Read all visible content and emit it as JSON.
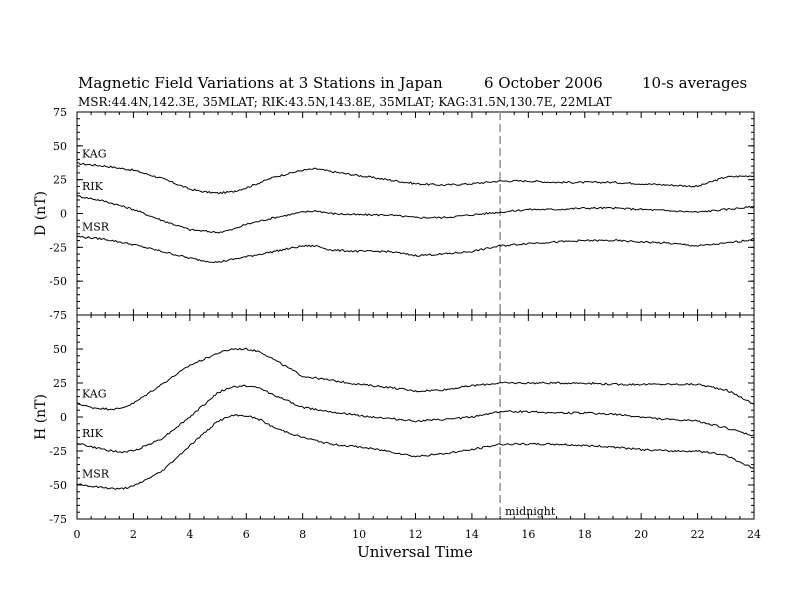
{
  "header": {
    "title": "Magnetic Field Variations at 3 Stations in Japan",
    "date": "6   October 2006",
    "averaging": "10-s averages",
    "stations": "MSR:44.4N,142.3E, 35MLAT;  RIK:43.5N,143.8E, 35MLAT;  KAG:31.5N,130.7E, 22MLAT"
  },
  "chart_data": [
    {
      "type": "line",
      "panel": "D",
      "ylabel": "D (nT)",
      "xlabel": "",
      "xlim": [
        0,
        24
      ],
      "ylim": [
        -75,
        75
      ],
      "yticks": [
        75,
        50,
        25,
        0,
        -25,
        -50,
        -75
      ],
      "xticks": [
        0,
        2,
        4,
        6,
        8,
        10,
        12,
        14,
        16,
        18,
        20,
        22,
        24
      ],
      "series": [
        {
          "name": "KAG",
          "x": [
            0,
            1,
            2,
            3,
            4,
            4.5,
            5,
            5.5,
            6,
            7,
            8,
            8.5,
            9,
            10,
            11,
            12,
            13,
            14,
            15,
            16,
            17,
            18,
            19,
            20,
            21,
            22,
            23,
            24
          ],
          "values": [
            37,
            35,
            32,
            26,
            18,
            16,
            15,
            16,
            19,
            27,
            32,
            33,
            31,
            28,
            25,
            22,
            21,
            22,
            24,
            24,
            23,
            23,
            23,
            22,
            21,
            20,
            27,
            28
          ]
        },
        {
          "name": "RIK",
          "x": [
            0,
            1,
            2,
            3,
            4,
            4.5,
            5,
            5.5,
            6,
            7,
            8,
            8.5,
            9,
            10,
            11,
            12,
            13,
            14,
            15,
            16,
            17,
            18,
            19,
            20,
            21,
            22,
            23,
            24
          ],
          "values": [
            13,
            9,
            3,
            -5,
            -12,
            -13,
            -14,
            -12,
            -8,
            -3,
            1,
            2,
            0,
            -1,
            -1,
            -3,
            -3,
            -1,
            1,
            3,
            3,
            4,
            4,
            3,
            2,
            1,
            3,
            5
          ]
        },
        {
          "name": "MSR",
          "x": [
            0,
            1,
            2,
            3,
            4,
            4.5,
            5,
            5.5,
            6,
            7,
            8,
            8.5,
            9,
            10,
            11,
            12,
            13,
            14,
            15,
            16,
            17,
            18,
            19,
            20,
            21,
            22,
            23,
            24
          ],
          "values": [
            -17,
            -19,
            -23,
            -28,
            -33,
            -35,
            -36,
            -34,
            -32,
            -28,
            -24,
            -24,
            -27,
            -28,
            -28,
            -31,
            -30,
            -28,
            -24,
            -22,
            -21,
            -20,
            -20,
            -21,
            -22,
            -24,
            -22,
            -19
          ]
        }
      ]
    },
    {
      "type": "line",
      "panel": "H",
      "ylabel": "H (nT)",
      "xlabel": "Universal Time",
      "xlim": [
        0,
        24
      ],
      "ylim": [
        -75,
        75
      ],
      "yticks": [
        50,
        25,
        0,
        -25,
        -50,
        -75
      ],
      "xticks": [
        0,
        2,
        4,
        6,
        8,
        10,
        12,
        14,
        16,
        18,
        20,
        22,
        24
      ],
      "series": [
        {
          "name": "KAG",
          "x": [
            0,
            0.5,
            1,
            1.5,
            2,
            3,
            4,
            5,
            5.5,
            6,
            6.5,
            7,
            8,
            9,
            10,
            11,
            12,
            13,
            14,
            15,
            16,
            17,
            18,
            19,
            20,
            21,
            22,
            23,
            23.5,
            24
          ],
          "values": [
            10,
            7,
            6,
            6,
            10,
            24,
            38,
            47,
            50,
            50,
            48,
            42,
            30,
            27,
            24,
            22,
            19,
            20,
            23,
            25,
            25,
            25,
            25,
            24,
            24,
            24,
            24,
            20,
            15,
            9
          ]
        },
        {
          "name": "RIK",
          "x": [
            0,
            0.5,
            1,
            1.5,
            2,
            3,
            4,
            5,
            5.5,
            6,
            6.5,
            7,
            8,
            9,
            10,
            11,
            12,
            13,
            14,
            15,
            16,
            17,
            18,
            19,
            20,
            21,
            22,
            23,
            23.5,
            24
          ],
          "values": [
            -19,
            -22,
            -24,
            -26,
            -25,
            -16,
            0,
            18,
            22,
            23,
            21,
            16,
            7,
            4,
            1,
            -1,
            -3,
            -2,
            0,
            4,
            4,
            3,
            3,
            2,
            0,
            -2,
            -3,
            -8,
            -11,
            -14
          ]
        },
        {
          "name": "MSR",
          "x": [
            0,
            0.5,
            1,
            1.5,
            2,
            3,
            4,
            5,
            5.5,
            6,
            6.5,
            7,
            8,
            9,
            10,
            11,
            12,
            13,
            14,
            15,
            16,
            17,
            18,
            19,
            20,
            21,
            22,
            23,
            23.5,
            24
          ],
          "values": [
            -49,
            -51,
            -52,
            -53,
            -51,
            -40,
            -21,
            -3,
            1,
            1,
            -2,
            -8,
            -15,
            -20,
            -22,
            -25,
            -29,
            -27,
            -24,
            -20,
            -20,
            -20,
            -21,
            -22,
            -24,
            -25,
            -25,
            -28,
            -33,
            -38
          ]
        }
      ]
    }
  ],
  "annotations": {
    "midnight_label": "midnight",
    "midnight_ut": 15
  }
}
